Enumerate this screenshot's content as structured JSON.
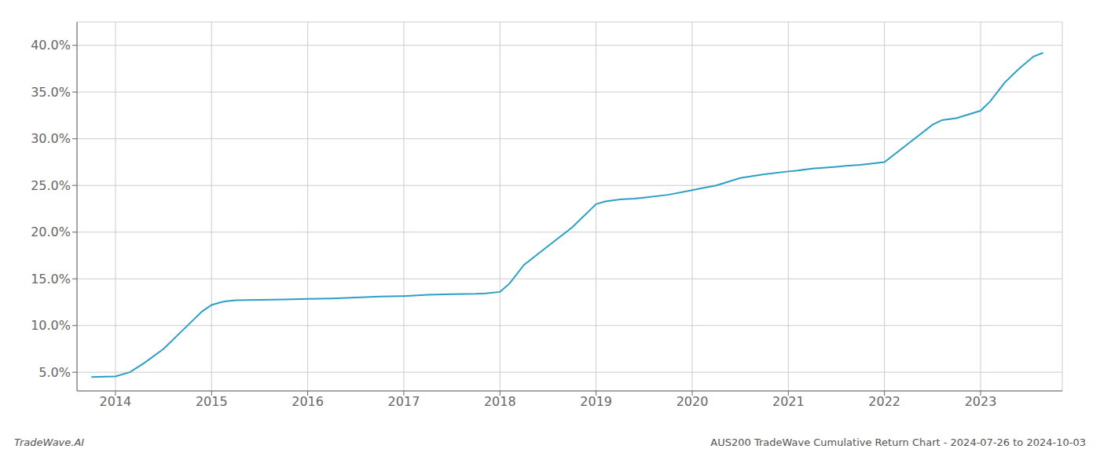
{
  "chart_data": {
    "type": "line",
    "title": "AUS200 TradeWave Cumulative Return Chart - 2024-07-26 to 2024-10-03",
    "annotations": [
      "TradeWave.AI"
    ],
    "color": "#2b9fc4",
    "grid": true,
    "x": [
      2013.75,
      2014.0,
      2014.15,
      2014.3,
      2014.5,
      2014.7,
      2014.9,
      2015.0,
      2015.1,
      2015.15,
      2015.25,
      2015.5,
      2015.75,
      2016.0,
      2016.25,
      2016.5,
      2016.75,
      2017.0,
      2017.25,
      2017.5,
      2017.75,
      2017.85,
      2018.0,
      2018.1,
      2018.25,
      2018.5,
      2018.75,
      2019.0,
      2019.1,
      2019.25,
      2019.4,
      2019.5,
      2019.75,
      2020.0,
      2020.1,
      2020.25,
      2020.5,
      2020.75,
      2021.0,
      2021.1,
      2021.25,
      2021.5,
      2021.6,
      2021.75,
      2022.0,
      2022.25,
      2022.5,
      2022.6,
      2022.75,
      2023.0,
      2023.1,
      2023.25,
      2023.4,
      2023.55,
      2023.65
    ],
    "values": [
      4.5,
      4.55,
      5.0,
      6.0,
      7.5,
      9.5,
      11.5,
      12.2,
      12.5,
      12.6,
      12.7,
      12.75,
      12.8,
      12.85,
      12.9,
      13.0,
      13.1,
      13.15,
      13.3,
      13.35,
      13.4,
      13.45,
      13.6,
      14.5,
      16.5,
      18.5,
      20.5,
      23.0,
      23.3,
      23.5,
      23.6,
      23.7,
      24.0,
      24.5,
      24.7,
      25.0,
      25.8,
      26.2,
      26.5,
      26.6,
      26.8,
      27.0,
      27.1,
      27.2,
      27.5,
      29.5,
      31.5,
      32.0,
      32.2,
      33.0,
      34.0,
      36.0,
      37.5,
      38.8,
      39.2
    ],
    "xlim": [
      2013.6,
      2023.85
    ],
    "xticks": [
      2014,
      2015,
      2016,
      2017,
      2018,
      2019,
      2020,
      2021,
      2022,
      2023
    ],
    "ylim": [
      3.0,
      42.5
    ],
    "yticks": [
      {
        "value": 5.0,
        "label": "5.0%"
      },
      {
        "value": 10.0,
        "label": "10.0%"
      },
      {
        "value": 15.0,
        "label": "15.0%"
      },
      {
        "value": 20.0,
        "label": "20.0%"
      },
      {
        "value": 25.0,
        "label": "25.0%"
      },
      {
        "value": 30.0,
        "label": "30.0%"
      },
      {
        "value": 35.0,
        "label": "35.0%"
      },
      {
        "value": 40.0,
        "label": "40.0%"
      }
    ]
  }
}
